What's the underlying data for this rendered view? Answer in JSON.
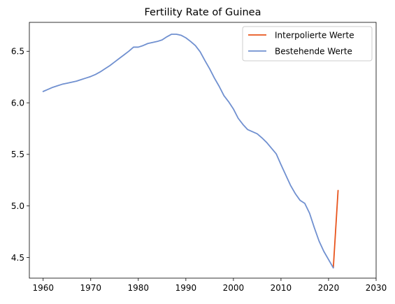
{
  "chart_data": {
    "type": "line",
    "title": "Fertility Rate of Guinea",
    "xlabel": "",
    "ylabel": "",
    "xlim": [
      1957.1,
      2030
    ],
    "ylim": [
      4.3,
      6.78
    ],
    "xticks": [
      1960,
      1970,
      1980,
      1990,
      2000,
      2010,
      2020,
      2030
    ],
    "yticks": [
      4.5,
      5.0,
      5.5,
      6.0,
      6.5
    ],
    "ytick_labels": [
      "4.5",
      "5.0",
      "5.5",
      "6.0",
      "6.5"
    ],
    "grid": false,
    "legend_position": "top-right",
    "series": [
      {
        "name": "Interpolierte Werte",
        "color": "#e8541c",
        "x": [
          2021,
          2022
        ],
        "y": [
          4.4,
          5.15
        ]
      },
      {
        "name": "Bestehende Werte",
        "color": "#7090d0",
        "x": [
          1960,
          1961,
          1962,
          1963,
          1964,
          1965,
          1966,
          1967,
          1968,
          1969,
          1970,
          1971,
          1972,
          1973,
          1974,
          1975,
          1976,
          1977,
          1978,
          1979,
          1980,
          1981,
          1982,
          1983,
          1984,
          1985,
          1986,
          1987,
          1988,
          1989,
          1990,
          1991,
          1992,
          1993,
          1994,
          1995,
          1996,
          1997,
          1998,
          1999,
          2000,
          2001,
          2002,
          2003,
          2004,
          2005,
          2006,
          2007,
          2008,
          2009,
          2010,
          2011,
          2012,
          2013,
          2014,
          2015,
          2016,
          2017,
          2018,
          2019,
          2020,
          2021
        ],
        "y": [
          6.11,
          6.13,
          6.15,
          6.165,
          6.18,
          6.19,
          6.2,
          6.21,
          6.225,
          6.24,
          6.255,
          6.275,
          6.3,
          6.33,
          6.36,
          6.395,
          6.43,
          6.465,
          6.5,
          6.54,
          6.54,
          6.555,
          6.575,
          6.585,
          6.595,
          6.61,
          6.64,
          6.665,
          6.665,
          6.655,
          6.63,
          6.595,
          6.555,
          6.495,
          6.41,
          6.33,
          6.24,
          6.16,
          6.07,
          6.01,
          5.94,
          5.85,
          5.79,
          5.74,
          5.72,
          5.7,
          5.66,
          5.615,
          5.56,
          5.505,
          5.4,
          5.3,
          5.2,
          5.12,
          5.055,
          5.025,
          4.93,
          4.79,
          4.66,
          4.56,
          4.48,
          4.4
        ]
      }
    ]
  }
}
